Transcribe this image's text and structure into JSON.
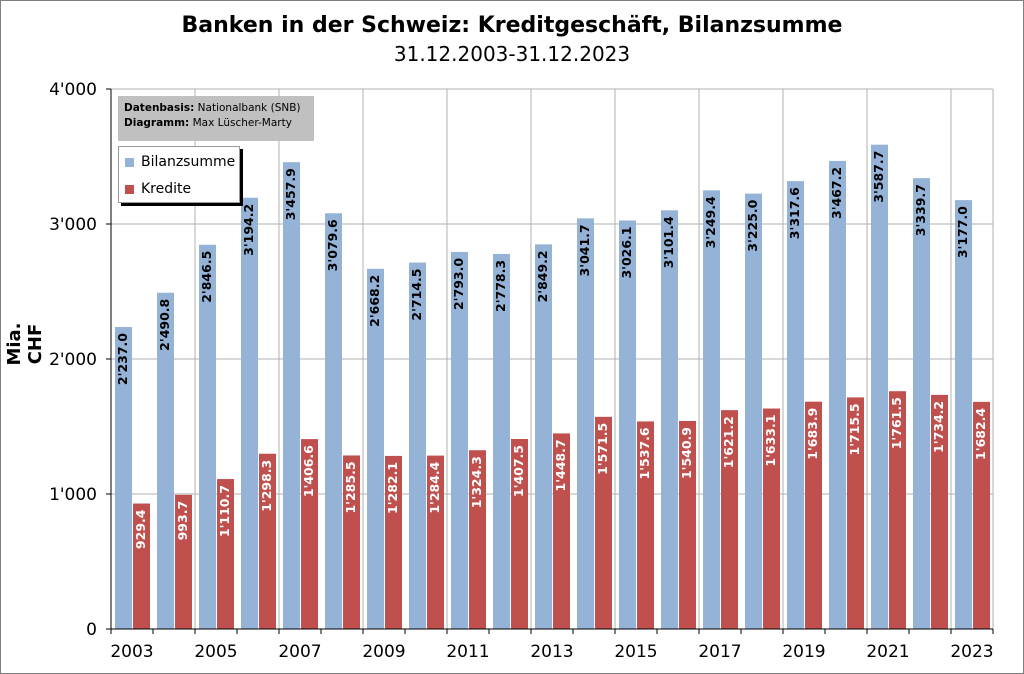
{
  "chart_data": {
    "type": "bar",
    "title": "Banken in der Schweiz: Kreditgeschäft,  Bilanzsumme",
    "subtitle": "31.12.2003-31.12.2023",
    "ylabel": "Mia. CHF",
    "xlabel": "",
    "ylim": [
      0,
      4000
    ],
    "yticks": [
      0,
      1000,
      2000,
      3000,
      4000
    ],
    "ytick_labels": [
      "0",
      "1'000",
      "2'000",
      "3'000",
      "4'000"
    ],
    "grid": true,
    "legend_position": "top-left",
    "categories": [
      "2003",
      "2004",
      "2005",
      "2006",
      "2007",
      "2008",
      "2009",
      "2010",
      "2011",
      "2012",
      "2013",
      "2014",
      "2015",
      "2016",
      "2017",
      "2018",
      "2019",
      "2020",
      "2021",
      "2022",
      "2023"
    ],
    "xtick_labels": [
      "2003",
      "2005",
      "2007",
      "2009",
      "2011",
      "2013",
      "2015",
      "2017",
      "2019",
      "2021",
      "2023"
    ],
    "series": [
      {
        "name": "Bilanzsumme",
        "color": "#95b3d7",
        "values": [
          2237.0,
          2490.8,
          2846.5,
          3194.2,
          3457.9,
          3079.6,
          2668.2,
          2714.5,
          2793.0,
          2778.3,
          2849.2,
          3041.7,
          3026.1,
          3101.4,
          3249.4,
          3225.0,
          3317.6,
          3467.2,
          3587.7,
          3339.7,
          3177.0
        ],
        "labels": [
          "2'237.0",
          "2'490.8",
          "2'846.5",
          "3'194.2",
          "3'457.9",
          "3'079.6",
          "2'668.2",
          "2'714.5",
          "2'793.0",
          "2'778.3",
          "2'849.2",
          "3'041.7",
          "3'026.1",
          "3'101.4",
          "3'249.4",
          "3'225.0",
          "3'317.6",
          "3'467.2",
          "3'587.7",
          "3'339.7",
          "3'177.0"
        ]
      },
      {
        "name": "Kredite",
        "color": "#c0504d",
        "values": [
          929.4,
          993.7,
          1110.7,
          1298.3,
          1406.6,
          1285.5,
          1282.1,
          1284.4,
          1324.3,
          1407.5,
          1448.7,
          1571.5,
          1537.6,
          1540.9,
          1621.2,
          1633.1,
          1683.9,
          1715.5,
          1761.5,
          1734.2,
          1682.4
        ],
        "labels": [
          "929.4",
          "993.7",
          "1'110.7",
          "1'298.3",
          "1'406.6",
          "1'285.5",
          "1'282.1",
          "1'284.4",
          "1'324.3",
          "1'407.5",
          "1'448.7",
          "1'571.5",
          "1'537.6",
          "1'540.9",
          "1'621.2",
          "1'633.1",
          "1'683.9",
          "1'715.5",
          "1'761.5",
          "1'734.2",
          "1'682.4"
        ]
      }
    ],
    "source_note": {
      "line1_label": "Datenbasis:",
      "line1_value": "Nationalbank (SNB)",
      "line2_label": "Diagramm:",
      "line2_value": "Max Lüscher-Marty"
    }
  }
}
